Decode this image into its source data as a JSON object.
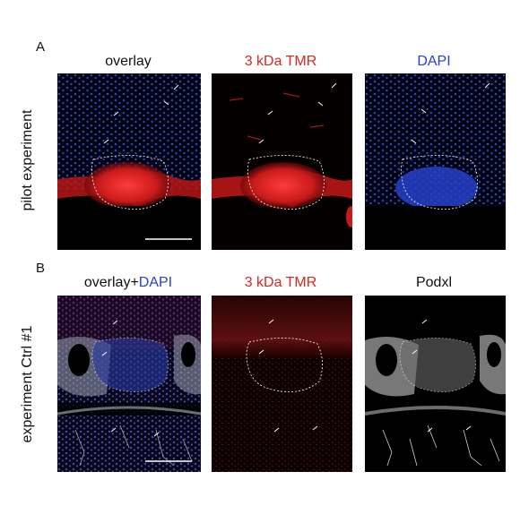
{
  "panel_a": {
    "letter": "A",
    "row_label": "pilot experiment",
    "columns": [
      {
        "label": "overlay",
        "color": "#111111"
      },
      {
        "label": "3 kDa TMR",
        "color": "#d42a20"
      },
      {
        "label": "DAPI",
        "color": "#2a3fc9"
      }
    ]
  },
  "panel_b": {
    "letter": "B",
    "row_label": "experiment Ctrl #1",
    "columns": [
      {
        "label_prefix": "overlay+",
        "label_suffix": "DAPI",
        "prefix_color": "#111111",
        "suffix_color": "#2a3fc9"
      },
      {
        "label": "3 kDa TMR",
        "color": "#d42a20"
      },
      {
        "label": "Podxl",
        "color": "#111111"
      }
    ]
  },
  "colors": {
    "tmr_red": "#d42a20",
    "dapi_blue": "#2a3fc9",
    "background": "#000000"
  }
}
